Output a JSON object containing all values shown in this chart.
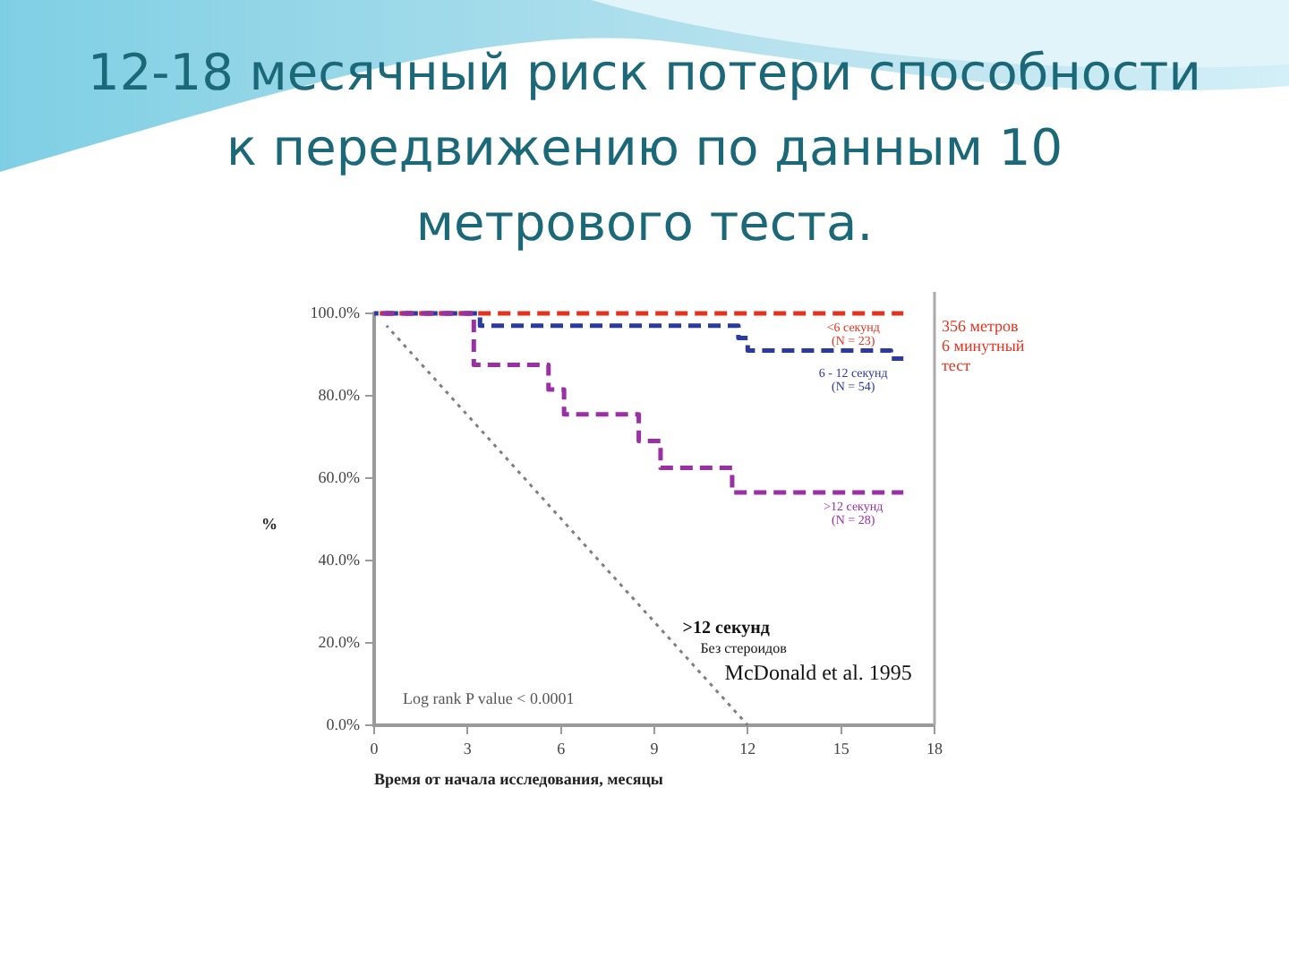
{
  "chart_data": {
    "type": "step",
    "title": "12-18 месячный риск потери способности\nк передвижению по данным 10\nметрового теста.",
    "xlabel": "Время от начала исследования, месяцы",
    "ylabel": "%",
    "xlim": [
      0,
      18
    ],
    "xticks": [
      0,
      3,
      6,
      9,
      12,
      15,
      18
    ],
    "ylim": [
      0,
      100
    ],
    "yticks": [
      {
        "value": 0,
        "label": "0.0%"
      },
      {
        "value": 20,
        "label": "20.0%"
      },
      {
        "value": 40,
        "label": "40.0%"
      },
      {
        "value": 60,
        "label": "60.0%"
      },
      {
        "value": 80,
        "label": "80.0%"
      },
      {
        "value": 100,
        "label": "100.0%"
      }
    ],
    "grid": false,
    "series": [
      {
        "name": "<6 секунд\n(N = 23)",
        "color": "#e4321e",
        "line_style": "dashed",
        "x": [
          0,
          17
        ],
        "values": [
          100,
          100
        ]
      },
      {
        "name": "6 - 12 секунд\n(N = 54)",
        "color": "#2b3a9e",
        "line_style": "dashed",
        "x": [
          0,
          3.4,
          11.7,
          12,
          16.6,
          17
        ],
        "values": [
          100,
          97,
          94,
          91,
          89,
          89
        ]
      },
      {
        "name": ">12 секунд\n(N = 28)",
        "color": "#9a2fa6",
        "line_style": "dashed",
        "x": [
          0,
          3.2,
          5.6,
          6.1,
          8.5,
          9.2,
          11.5,
          17
        ],
        "values": [
          100,
          87.5,
          81.5,
          75.5,
          69,
          62.5,
          56.5,
          56.5
        ]
      },
      {
        "name": ">12 секунд\nБез стероидов\nMcDonald et al. 1995",
        "type": "line",
        "color": "#7f7f7f",
        "line_style": "dotted",
        "x": [
          0.4,
          12
        ],
        "values": [
          97,
          0
        ]
      }
    ],
    "annotations": [
      "Log rank P value < 0.0001",
      "356 метров\n6 минутный\nтест"
    ]
  }
}
